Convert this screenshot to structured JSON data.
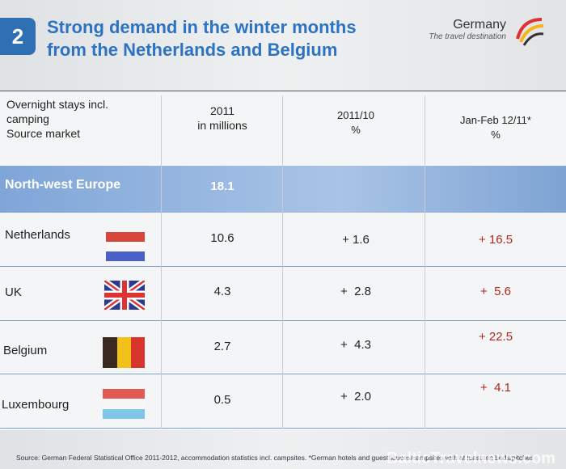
{
  "header": {
    "badge": "2",
    "title_lines": [
      "Strong demand in the winter months",
      "from the Netherlands and Belgium"
    ],
    "logo": {
      "name": "Germany",
      "tagline": "The travel destination"
    }
  },
  "table": {
    "columns": [
      [
        "Overnight stays incl.",
        "camping",
        "Source market"
      ],
      [
        "2011",
        "in millions"
      ],
      [
        "2011/10",
        "%"
      ],
      [
        "Jan-Feb 12/11*",
        "%"
      ]
    ],
    "rows": [
      [
        "North-west Europe",
        "18.1",
        "",
        ""
      ],
      [
        "Netherlands",
        "10.6",
        "+ 1.6",
        "+ 16.5"
      ],
      [
        "UK",
        "4.3",
        "+  2.8",
        "+  5.6"
      ],
      [
        "Belgium",
        "2.7",
        "+  4.3",
        "+ 22.5"
      ],
      [
        "Luxembourg",
        "0.5",
        "+  2.0",
        "+  4.1"
      ]
    ]
  },
  "footer": {
    "source": "Source: German Federal Statistical Office 2011-2012, accommodation statistics incl. campsites. *German hotels and guesthouses/campsites with at least ten beds/pitches",
    "watermark": "BalticTravelnews.com"
  }
}
